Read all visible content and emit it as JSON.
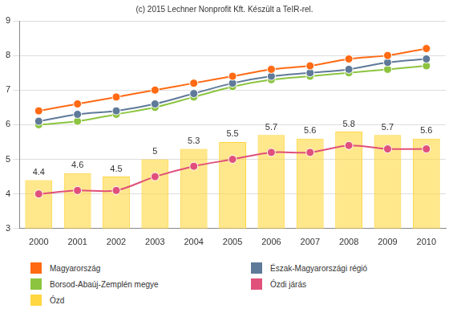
{
  "chart_data": {
    "type": "bar",
    "title": "(c) 2015 Lechner Nonprofit Kft. Készült a TeIR-rel.",
    "categories": [
      "2000",
      "2001",
      "2002",
      "2003",
      "2004",
      "2005",
      "2006",
      "2007",
      "2008",
      "2009",
      "2010"
    ],
    "series": [
      {
        "name": "Magyarország",
        "type": "line",
        "marker": "circle",
        "color": "#ff6a13",
        "values": [
          6.4,
          6.6,
          6.8,
          7.0,
          7.2,
          7.4,
          7.6,
          7.7,
          7.9,
          8.0,
          8.2
        ]
      },
      {
        "name": "Észak-Magyarországi régió",
        "type": "line",
        "marker": "circle",
        "color": "#5f7a99",
        "values": [
          6.1,
          6.3,
          6.4,
          6.6,
          6.9,
          7.2,
          7.4,
          7.5,
          7.6,
          7.8,
          7.9
        ]
      },
      {
        "name": "Borsod-Abaúj-Zemplén megye",
        "type": "line",
        "marker": "circle",
        "color": "#8cc43f",
        "values": [
          6.0,
          6.1,
          6.3,
          6.5,
          6.8,
          7.1,
          7.3,
          7.4,
          7.5,
          7.6,
          7.7
        ]
      },
      {
        "name": "Ózdi járás",
        "type": "line",
        "marker": "circle",
        "color": "#e0507a",
        "values": [
          4.0,
          4.1,
          4.1,
          4.5,
          4.8,
          5.0,
          5.2,
          5.2,
          5.4,
          5.3,
          5.3
        ]
      },
      {
        "name": "Ózd",
        "type": "bar",
        "color": "#ffd740",
        "data_labels": true,
        "values": [
          4.4,
          4.6,
          4.5,
          5,
          5.3,
          5.5,
          5.7,
          5.6,
          5.8,
          5.7,
          5.6
        ]
      }
    ],
    "ylim": [
      3,
      9
    ],
    "yticks": [
      3,
      4,
      5,
      6,
      7,
      8,
      9
    ],
    "grid": true,
    "legend": "bottom"
  }
}
